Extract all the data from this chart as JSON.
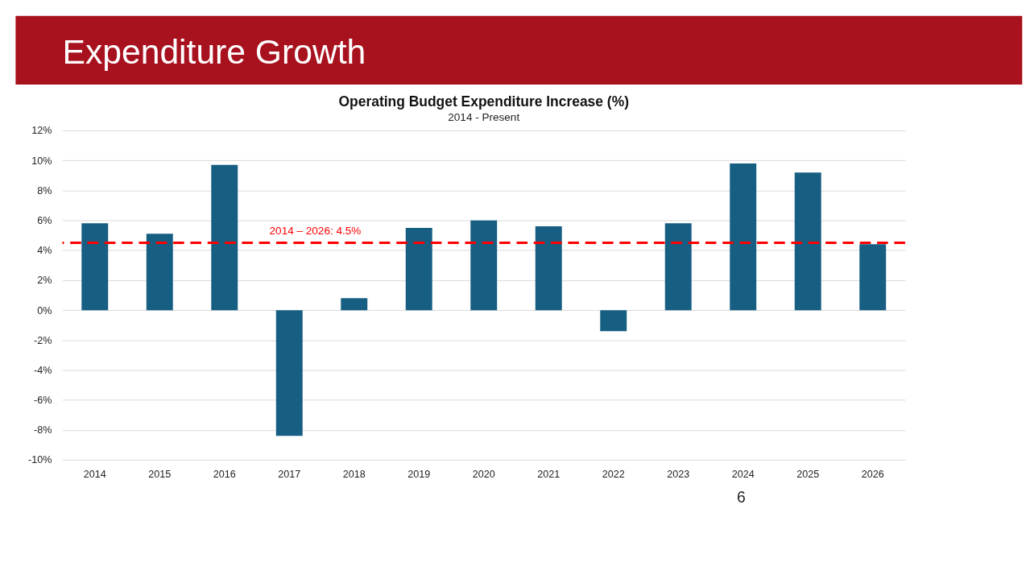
{
  "chart_data": {
    "type": "bar",
    "title": "Operating Budget Expenditure Increase (%)",
    "subtitle": "2014  - Present",
    "categories": [
      "2014",
      "2015",
      "2016",
      "2017",
      "2018",
      "2019",
      "2020",
      "2021",
      "2022",
      "2023",
      "2024",
      "2025",
      "2026"
    ],
    "series": [
      {
        "color": "#175e83",
        "values": [
          5.8,
          5.1,
          9.7,
          -8.4,
          0.8,
          5.5,
          6.0,
          5.6,
          -1.4,
          5.8,
          9.8,
          9.2,
          4.4
        ]
      }
    ],
    "ylim": [
      -10,
      12
    ],
    "yticks": [
      {
        "value": -10,
        "label": "-10%"
      },
      {
        "value": -8,
        "label": "-8%"
      },
      {
        "value": -6,
        "label": "-6%"
      },
      {
        "value": -4,
        "label": "-4%"
      },
      {
        "value": -2,
        "label": "-2%"
      },
      {
        "value": 0,
        "label": "0%"
      },
      {
        "value": 2,
        "label": "2%"
      },
      {
        "value": 4,
        "label": "4%"
      },
      {
        "value": 6,
        "label": "6%"
      },
      {
        "value": 8,
        "label": "8%"
      },
      {
        "value": 10,
        "label": "10%"
      },
      {
        "value": 12,
        "label": "12%"
      }
    ],
    "ref_lines": [
      {
        "axis": "y",
        "value": 4.5,
        "label": "2014 – 2026: 4.5%",
        "color": "#ff0000",
        "line_style": "dashed"
      }
    ],
    "grid": "y",
    "annotations": [
      "Expenditure Growth",
      "6"
    ]
  }
}
